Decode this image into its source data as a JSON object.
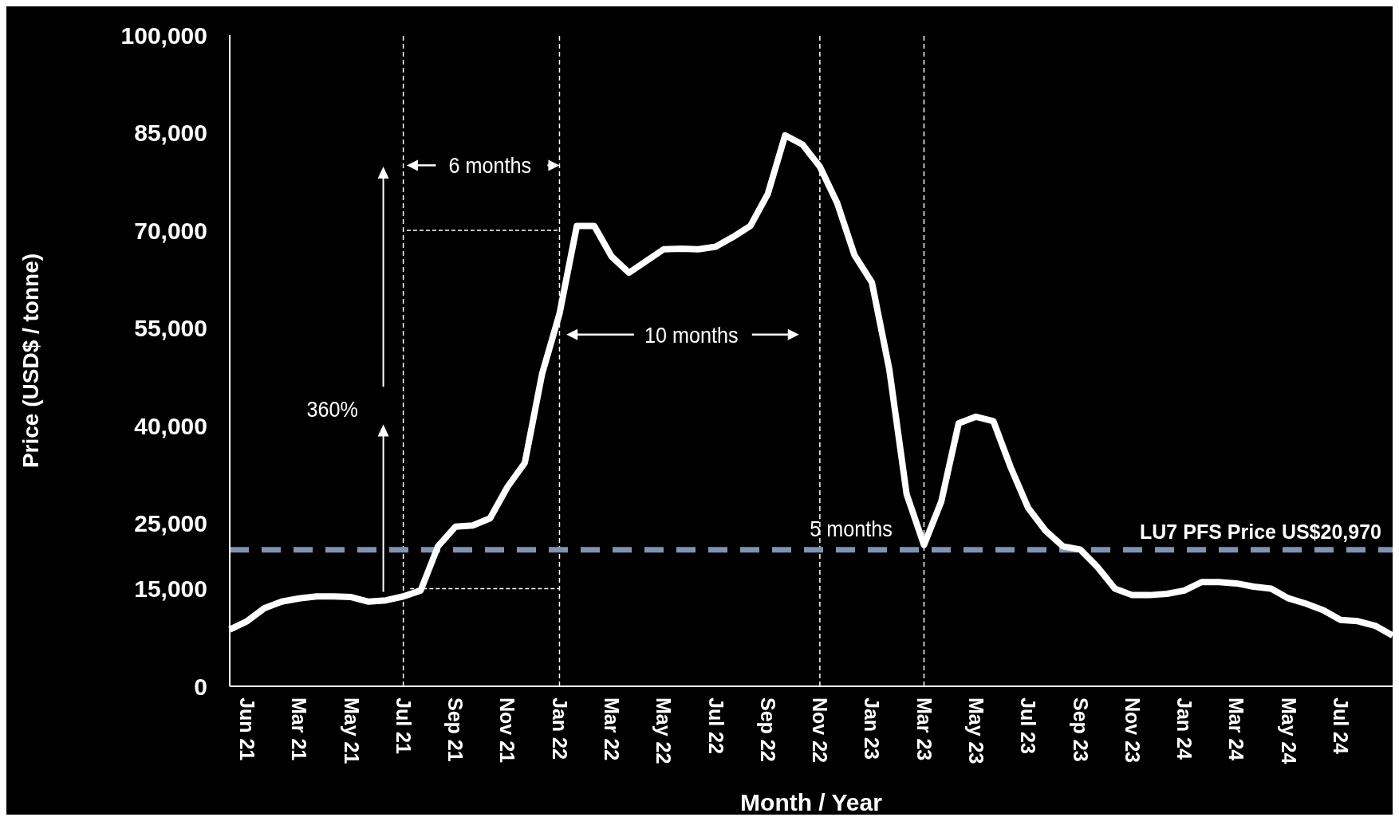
{
  "chart_data": {
    "type": "line",
    "xlabel": "Month / Year",
    "ylabel": "Price (USD$ / tonne)",
    "categories": [
      null,
      "Jun 21",
      null,
      null,
      "Mar 21",
      null,
      null,
      "May 21",
      null,
      null,
      "Jul 21",
      null,
      null,
      "Sep 21",
      null,
      null,
      "Nov 21",
      null,
      null,
      "Jan 22",
      null,
      null,
      "Mar 22",
      null,
      null,
      "May 22",
      null,
      null,
      "Jul 22",
      null,
      null,
      "Sep 22",
      null,
      null,
      "Nov 22",
      null,
      null,
      "Jan 23",
      null,
      null,
      "Mar 23",
      null,
      null,
      "May 23",
      null,
      null,
      "Jul 23",
      null,
      null,
      "Sep 23",
      null,
      null,
      "Nov 23",
      null,
      null,
      "Jan 24",
      null,
      null,
      "Mar 24",
      null,
      null,
      "May 24",
      null,
      null,
      "Jul 24",
      null,
      null,
      null
    ],
    "series": [
      {
        "color": "#ffffff",
        "values": [
          8700,
          10000,
          12000,
          13000,
          13500,
          13800,
          13800,
          13700,
          13000,
          13200,
          13800,
          14700,
          21500,
          24500,
          24700,
          25800,
          30600,
          34300,
          48000,
          57200,
          70700,
          70700,
          66000,
          63500,
          65300,
          67100,
          67200,
          67100,
          67500,
          69000,
          70700,
          75600,
          84600,
          83200,
          79800,
          74200,
          66200,
          62000,
          48700,
          29500,
          21700,
          28400,
          40400,
          41400,
          40700,
          33600,
          27400,
          23900,
          21500,
          21000,
          18300,
          15000,
          14000,
          14000,
          14200,
          14700,
          16000,
          16000,
          15800,
          15300,
          15000,
          13500,
          12700,
          11700,
          10200,
          10000,
          9300,
          7800
        ]
      }
    ],
    "ylim": [
      0,
      100000
    ],
    "yticks": [
      {
        "value": 0,
        "label": "0"
      },
      {
        "value": 15000,
        "label": "15,000"
      },
      {
        "value": 25000,
        "label": "25,000"
      },
      {
        "value": 40000,
        "label": "40,000"
      },
      {
        "value": 55000,
        "label": "55,000"
      },
      {
        "value": 70000,
        "label": "70,000"
      },
      {
        "value": 85000,
        "label": "85,000"
      },
      {
        "value": 100000,
        "label": "100,000"
      }
    ],
    "ref_lines": [
      {
        "axis": "y",
        "value": 20970,
        "label": "LU7 PFS Price US$20,970",
        "color": "#7f93b3",
        "line_style": "dashed"
      },
      {
        "axis": "x",
        "value": "Jul 21",
        "label": null,
        "color": "#ffffff",
        "line_style": "dashed"
      },
      {
        "axis": "x",
        "value": "Jan 22",
        "label": null,
        "color": "#ffffff",
        "line_style": "dashed"
      },
      {
        "axis": "x",
        "value": "Nov 22",
        "label": null,
        "color": "#ffffff",
        "line_style": "dashed"
      },
      {
        "axis": "x",
        "value": "Mar 23",
        "label": null,
        "color": "#ffffff",
        "line_style": "dashed"
      }
    ],
    "annotations": [
      "6 months",
      "10 months",
      "5 months",
      "360%"
    ],
    "marker": "none",
    "line_style": "solid"
  }
}
